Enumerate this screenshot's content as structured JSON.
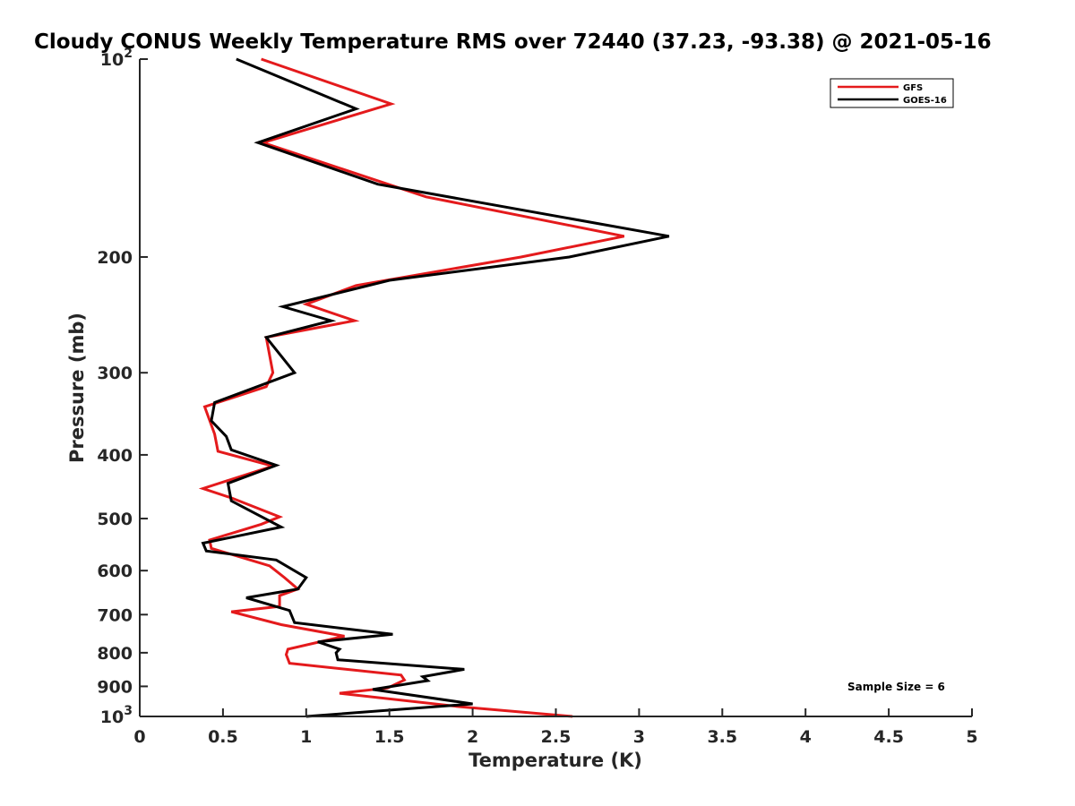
{
  "chart_data": {
    "type": "line",
    "title": "Cloudy CONUS Weekly Temperature RMS over 72440 (37.23, -93.38) @ 2021-05-16",
    "xlabel": "Temperature (K)",
    "ylabel": "Pressure (mb)",
    "xlim": [
      0,
      5
    ],
    "ylim": [
      100,
      1000
    ],
    "y_scale": "log",
    "y_reversed": true,
    "grid": false,
    "legend_position": "top-right",
    "x_ticks": [
      "0",
      "0.5",
      "1",
      "1.5",
      "2",
      "2.5",
      "3",
      "3.5",
      "4",
      "4.5",
      "5"
    ],
    "y_ticks": [
      {
        "value": 100,
        "label": "10",
        "sup": "2"
      },
      {
        "value": 200,
        "label": "200",
        "sup": ""
      },
      {
        "value": 300,
        "label": "300",
        "sup": ""
      },
      {
        "value": 400,
        "label": "400",
        "sup": ""
      },
      {
        "value": 500,
        "label": "500",
        "sup": ""
      },
      {
        "value": 600,
        "label": "600",
        "sup": ""
      },
      {
        "value": 700,
        "label": "700",
        "sup": ""
      },
      {
        "value": 800,
        "label": "800",
        "sup": ""
      },
      {
        "value": 900,
        "label": "900",
        "sup": ""
      },
      {
        "value": 1000,
        "label": "10",
        "sup": "3"
      }
    ],
    "annotation": "Sample Size = 6",
    "series": [
      {
        "name": "GFS",
        "color": "#e41a1c",
        "points": [
          [
            0.73,
            100
          ],
          [
            1.51,
            117
          ],
          [
            0.74,
            134
          ],
          [
            1.72,
            162
          ],
          [
            2.91,
            186
          ],
          [
            2.29,
            200
          ],
          [
            1.3,
            221
          ],
          [
            1.0,
            236
          ],
          [
            1.29,
            250
          ],
          [
            0.76,
            265
          ],
          [
            0.8,
            300
          ],
          [
            0.76,
            315
          ],
          [
            0.39,
            338
          ],
          [
            0.45,
            372
          ],
          [
            0.47,
            395
          ],
          [
            0.8,
            416
          ],
          [
            0.38,
            450
          ],
          [
            0.56,
            466
          ],
          [
            0.84,
            497
          ],
          [
            0.73,
            510
          ],
          [
            0.42,
            539
          ],
          [
            0.43,
            555
          ],
          [
            0.78,
            590
          ],
          [
            0.87,
            615
          ],
          [
            0.95,
            640
          ],
          [
            0.84,
            655
          ],
          [
            0.84,
            680
          ],
          [
            0.55,
            693
          ],
          [
            0.85,
            725
          ],
          [
            1.23,
            755
          ],
          [
            0.89,
            790
          ],
          [
            0.88,
            805
          ],
          [
            0.9,
            830
          ],
          [
            1.57,
            865
          ],
          [
            1.59,
            880
          ],
          [
            1.49,
            905
          ],
          [
            1.2,
            922
          ],
          [
            1.93,
            967
          ],
          [
            2.6,
            1000
          ]
        ]
      },
      {
        "name": "GOES-16",
        "color": "#000000",
        "points": [
          [
            0.58,
            100
          ],
          [
            1.3,
            119
          ],
          [
            0.71,
            134
          ],
          [
            1.43,
            155
          ],
          [
            3.18,
            186
          ],
          [
            2.58,
            200
          ],
          [
            1.5,
            217
          ],
          [
            0.86,
            238
          ],
          [
            1.15,
            250
          ],
          [
            0.76,
            265
          ],
          [
            0.93,
            300
          ],
          [
            0.45,
            333
          ],
          [
            0.43,
            355
          ],
          [
            0.52,
            375
          ],
          [
            0.55,
            393
          ],
          [
            0.82,
            415
          ],
          [
            0.53,
            442
          ],
          [
            0.55,
            470
          ],
          [
            0.85,
            515
          ],
          [
            0.38,
            545
          ],
          [
            0.4,
            560
          ],
          [
            0.82,
            578
          ],
          [
            1.0,
            615
          ],
          [
            0.95,
            640
          ],
          [
            0.64,
            660
          ],
          [
            0.9,
            690
          ],
          [
            0.93,
            720
          ],
          [
            1.52,
            750
          ],
          [
            1.07,
            770
          ],
          [
            1.2,
            790
          ],
          [
            1.18,
            800
          ],
          [
            1.19,
            820
          ],
          [
            1.95,
            848
          ],
          [
            1.7,
            870
          ],
          [
            1.73,
            882
          ],
          [
            1.4,
            910
          ],
          [
            2.0,
            957
          ],
          [
            1.0,
            1000
          ]
        ]
      }
    ]
  }
}
